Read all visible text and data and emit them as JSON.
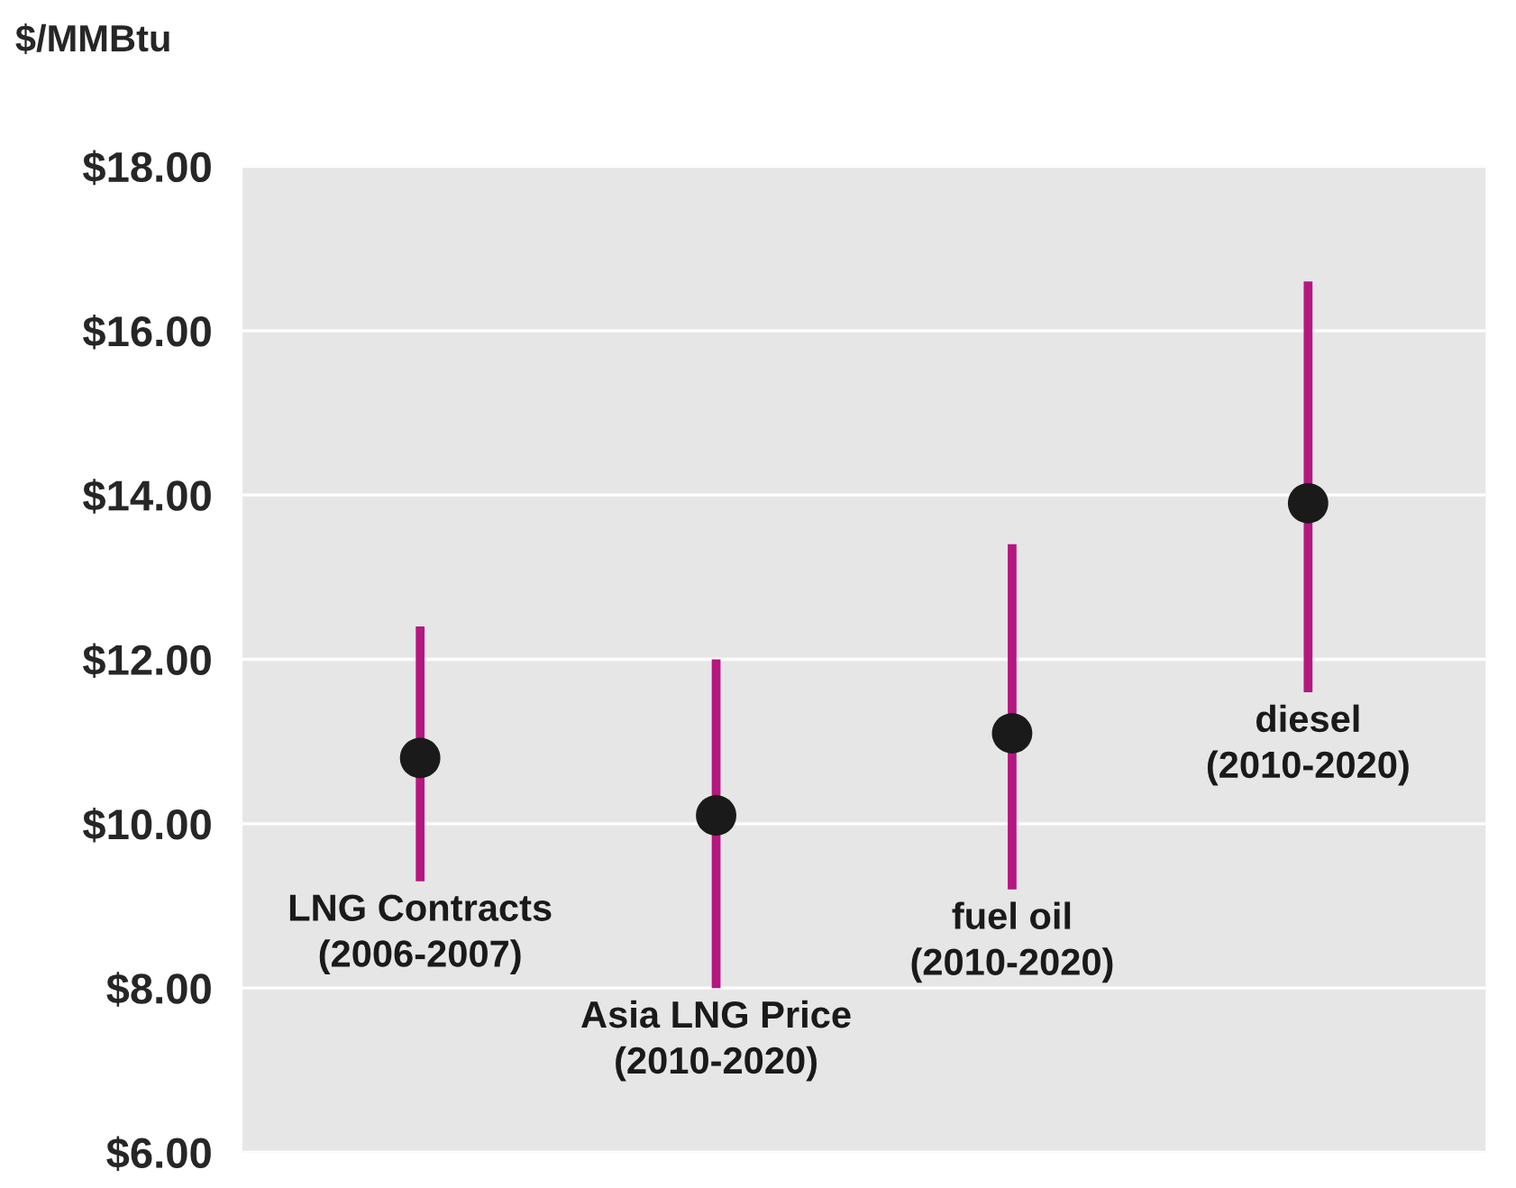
{
  "chart_data": {
    "type": "scatter",
    "ylabel": "$/MMBtu",
    "categories": [
      "LNG Contracts\n(2006-2007)",
      "Asia LNG Price\n(2010-2020)",
      "fuel oil\n(2010-2020)",
      "diesel\n(2010-2020)"
    ],
    "series": [
      {
        "color": "#1a1a1a",
        "values": [
          10.8,
          10.1,
          11.1,
          13.9
        ],
        "errors": [
          [
            9.3,
            12.4
          ],
          [
            8.0,
            12.0
          ],
          [
            9.2,
            13.4
          ],
          [
            11.6,
            16.6
          ]
        ]
      }
    ],
    "ylim": [
      6,
      18
    ],
    "yticks": [
      {
        "value": 6,
        "label": "$6.00"
      },
      {
        "value": 8,
        "label": "$8.00"
      },
      {
        "value": 10,
        "label": "$10.00"
      },
      {
        "value": 12,
        "label": "$12.00"
      },
      {
        "value": 14,
        "label": "$14.00"
      },
      {
        "value": 16,
        "label": "$16.00"
      },
      {
        "value": 18,
        "label": "$18.00"
      }
    ],
    "grid": "y",
    "tick_labels": "y",
    "marker": "circle"
  }
}
